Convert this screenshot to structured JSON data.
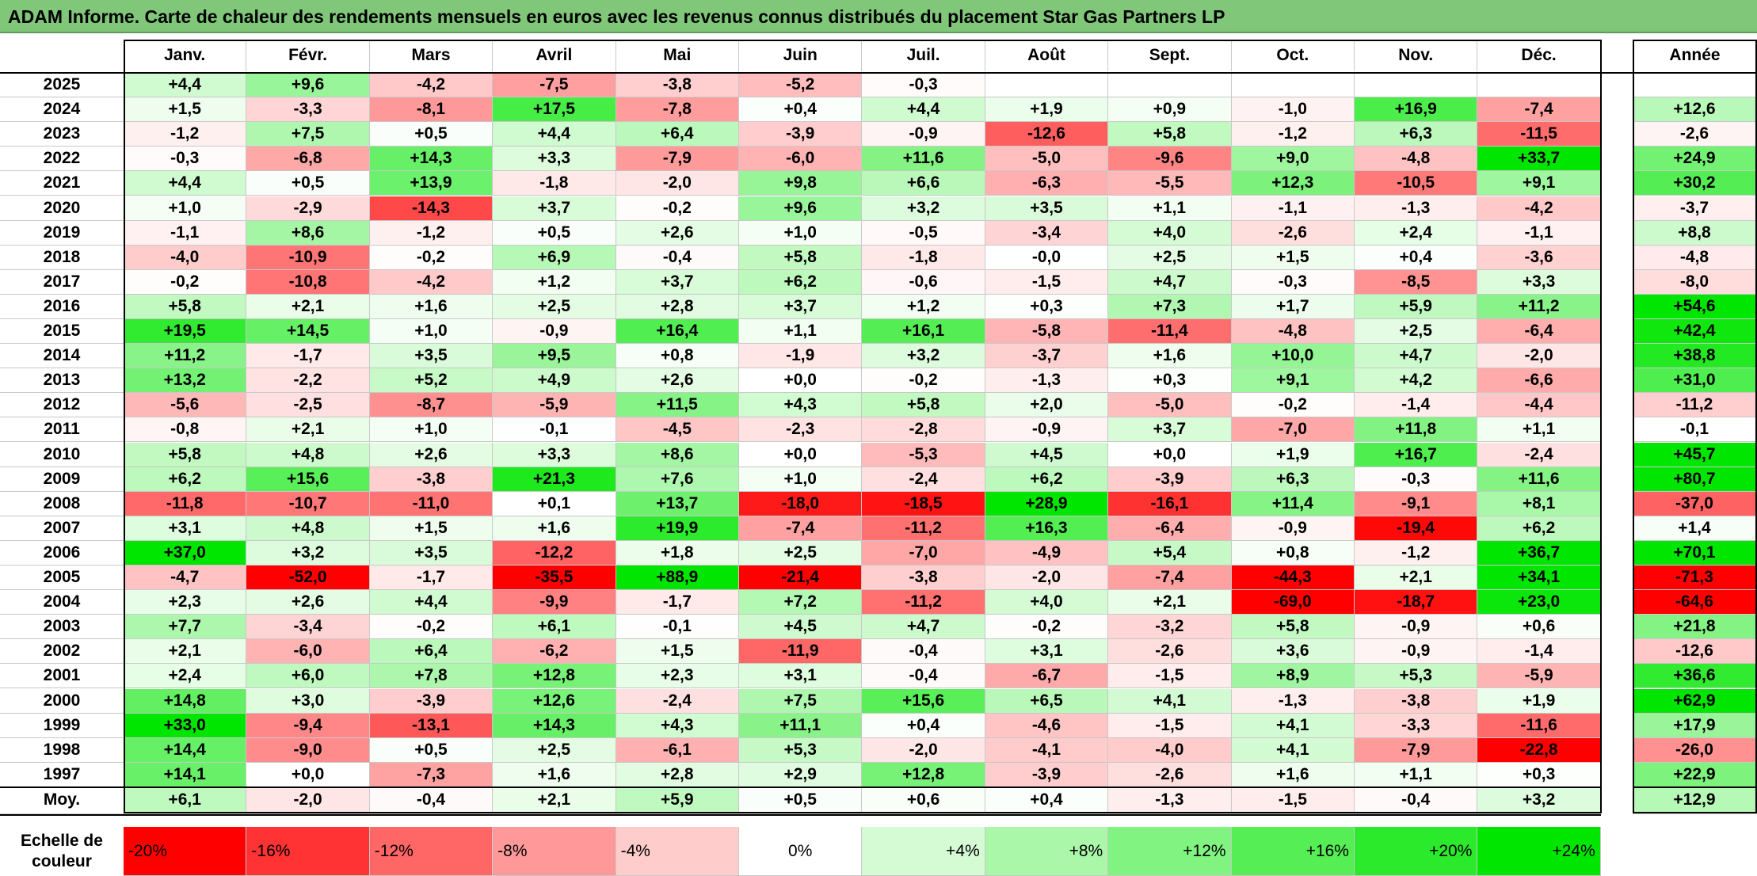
{
  "title": "ADAM Informe. Carte de chaleur des rendements mensuels en euros avec les revenus connus distribués du placement Star Gas Partners LP",
  "chart_data": {
    "type": "heatmap",
    "title": "ADAM Informe. Carte de chaleur des rendements mensuels en euros avec les revenus connus distribués du placement Star Gas Partners LP",
    "months": [
      "Janv.",
      "Févr.",
      "Mars",
      "Avril",
      "Mai",
      "Juin",
      "Juil.",
      "Août",
      "Sept.",
      "Oct.",
      "Nov.",
      "Déc."
    ],
    "annual_label": "Année",
    "average_label": "Moy.",
    "rows": [
      {
        "year": "2025",
        "values": [
          "+4,4",
          "+9,6",
          "-4,2",
          "-7,5",
          "-3,8",
          "-5,2",
          "-0,3",
          "",
          "",
          "",
          "",
          ""
        ],
        "annual": ""
      },
      {
        "year": "2024",
        "values": [
          "+1,5",
          "-3,3",
          "-8,1",
          "+17,5",
          "-7,8",
          "+0,4",
          "+4,4",
          "+1,9",
          "+0,9",
          "-1,0",
          "+16,9",
          "-7,4"
        ],
        "annual": "+12,6"
      },
      {
        "year": "2023",
        "values": [
          "-1,2",
          "+7,5",
          "+0,5",
          "+4,4",
          "+6,4",
          "-3,9",
          "-0,9",
          "-12,6",
          "+5,8",
          "-1,2",
          "+6,3",
          "-11,5"
        ],
        "annual": "-2,6"
      },
      {
        "year": "2022",
        "values": [
          "-0,3",
          "-6,8",
          "+14,3",
          "+3,3",
          "-7,9",
          "-6,0",
          "+11,6",
          "-5,0",
          "-9,6",
          "+9,0",
          "-4,8",
          "+33,7"
        ],
        "annual": "+24,9"
      },
      {
        "year": "2021",
        "values": [
          "+4,4",
          "+0,5",
          "+13,9",
          "-1,8",
          "-2,0",
          "+9,8",
          "+6,6",
          "-6,3",
          "-5,5",
          "+12,3",
          "-10,5",
          "+9,1"
        ],
        "annual": "+30,2"
      },
      {
        "year": "2020",
        "values": [
          "+1,0",
          "-2,9",
          "-14,3",
          "+3,7",
          "-0,2",
          "+9,6",
          "+3,2",
          "+3,5",
          "+1,1",
          "-1,1",
          "-1,3",
          "-4,2"
        ],
        "annual": "-3,7"
      },
      {
        "year": "2019",
        "values": [
          "-1,1",
          "+8,6",
          "-1,2",
          "+0,5",
          "+2,6",
          "+1,0",
          "-0,5",
          "-3,4",
          "+4,0",
          "-2,6",
          "+2,4",
          "-1,1"
        ],
        "annual": "+8,8"
      },
      {
        "year": "2018",
        "values": [
          "-4,0",
          "-10,9",
          "-0,2",
          "+6,9",
          "-0,4",
          "+5,8",
          "-1,8",
          "-0,0",
          "+2,5",
          "+1,5",
          "+0,4",
          "-3,6"
        ],
        "annual": "-4,8"
      },
      {
        "year": "2017",
        "values": [
          "-0,2",
          "-10,8",
          "-4,2",
          "+1,2",
          "+3,7",
          "+6,2",
          "-0,6",
          "-1,5",
          "+4,7",
          "-0,3",
          "-8,5",
          "+3,3"
        ],
        "annual": "-8,0"
      },
      {
        "year": "2016",
        "values": [
          "+5,8",
          "+2,1",
          "+1,6",
          "+2,5",
          "+2,8",
          "+3,7",
          "+1,2",
          "+0,3",
          "+7,3",
          "+1,7",
          "+5,9",
          "+11,2"
        ],
        "annual": "+54,6"
      },
      {
        "year": "2015",
        "values": [
          "+19,5",
          "+14,5",
          "+1,0",
          "-0,9",
          "+16,4",
          "+1,1",
          "+16,1",
          "-5,8",
          "-11,4",
          "-4,8",
          "+2,5",
          "-6,4"
        ],
        "annual": "+42,4"
      },
      {
        "year": "2014",
        "values": [
          "+11,2",
          "-1,7",
          "+3,5",
          "+9,5",
          "+0,8",
          "-1,9",
          "+3,2",
          "-3,7",
          "+1,6",
          "+10,0",
          "+4,7",
          "-2,0"
        ],
        "annual": "+38,8"
      },
      {
        "year": "2013",
        "values": [
          "+13,2",
          "-2,2",
          "+5,2",
          "+4,9",
          "+2,6",
          "+0,0",
          "-0,2",
          "-1,3",
          "+0,3",
          "+9,1",
          "+4,2",
          "-6,6"
        ],
        "annual": "+31,0"
      },
      {
        "year": "2012",
        "values": [
          "-5,6",
          "-2,5",
          "-8,7",
          "-5,9",
          "+11,5",
          "+4,3",
          "+5,8",
          "+2,0",
          "-5,0",
          "-0,2",
          "-1,4",
          "-4,4"
        ],
        "annual": "-11,2"
      },
      {
        "year": "2011",
        "values": [
          "-0,8",
          "+2,1",
          "+1,0",
          "-0,1",
          "-4,5",
          "-2,3",
          "-2,8",
          "-0,9",
          "+3,7",
          "-7,0",
          "+11,8",
          "+1,1"
        ],
        "annual": "-0,1"
      },
      {
        "year": "2010",
        "values": [
          "+5,8",
          "+4,8",
          "+2,6",
          "+3,3",
          "+8,6",
          "+0,0",
          "-5,3",
          "+4,5",
          "+0,0",
          "+1,9",
          "+16,7",
          "-2,4"
        ],
        "annual": "+45,7"
      },
      {
        "year": "2009",
        "values": [
          "+6,2",
          "+15,6",
          "-3,8",
          "+21,3",
          "+7,6",
          "+1,0",
          "-2,4",
          "+6,2",
          "-3,9",
          "+6,3",
          "-0,3",
          "+11,6"
        ],
        "annual": "+80,7"
      },
      {
        "year": "2008",
        "values": [
          "-11,8",
          "-10,7",
          "-11,0",
          "+0,1",
          "+13,7",
          "-18,0",
          "-18,5",
          "+28,9",
          "-16,1",
          "+11,4",
          "-9,1",
          "+8,1"
        ],
        "annual": "-37,0"
      },
      {
        "year": "2007",
        "values": [
          "+3,1",
          "+4,8",
          "+1,5",
          "+1,6",
          "+19,9",
          "-7,4",
          "-11,2",
          "+16,3",
          "-6,4",
          "-0,9",
          "-19,4",
          "+6,2"
        ],
        "annual": "+1,4"
      },
      {
        "year": "2006",
        "values": [
          "+37,0",
          "+3,2",
          "+3,5",
          "-12,2",
          "+1,8",
          "+2,5",
          "-7,0",
          "-4,9",
          "+5,4",
          "+0,8",
          "-1,2",
          "+36,7"
        ],
        "annual": "+70,1"
      },
      {
        "year": "2005",
        "values": [
          "-4,7",
          "-52,0",
          "-1,7",
          "-35,5",
          "+88,9",
          "-21,4",
          "-3,8",
          "-2,0",
          "-7,4",
          "-44,3",
          "+2,1",
          "+34,1"
        ],
        "annual": "-71,3"
      },
      {
        "year": "2004",
        "values": [
          "+2,3",
          "+2,6",
          "+4,4",
          "-9,9",
          "-1,7",
          "+7,2",
          "-11,2",
          "+4,0",
          "+2,1",
          "-69,0",
          "-18,7",
          "+23,0"
        ],
        "annual": "-64,6"
      },
      {
        "year": "2003",
        "values": [
          "+7,7",
          "-3,4",
          "-0,2",
          "+6,1",
          "-0,1",
          "+4,5",
          "+4,7",
          "-0,2",
          "-3,2",
          "+5,8",
          "-0,9",
          "+0,6"
        ],
        "annual": "+21,8"
      },
      {
        "year": "2002",
        "values": [
          "+2,1",
          "-6,0",
          "+6,4",
          "-6,2",
          "+1,5",
          "-11,9",
          "-0,4",
          "+3,1",
          "-2,6",
          "+3,6",
          "-0,9",
          "-1,4"
        ],
        "annual": "-12,6"
      },
      {
        "year": "2001",
        "values": [
          "+2,4",
          "+6,0",
          "+7,8",
          "+12,8",
          "+2,3",
          "+3,1",
          "-0,4",
          "-6,7",
          "-1,5",
          "+8,9",
          "+5,3",
          "-5,9"
        ],
        "annual": "+36,6"
      },
      {
        "year": "2000",
        "values": [
          "+14,8",
          "+3,0",
          "-3,9",
          "+12,6",
          "-2,4",
          "+7,5",
          "+15,6",
          "+6,5",
          "+4,1",
          "-1,3",
          "-3,8",
          "+1,9"
        ],
        "annual": "+62,9"
      },
      {
        "year": "1999",
        "values": [
          "+33,0",
          "-9,4",
          "-13,1",
          "+14,3",
          "+4,3",
          "+11,1",
          "+0,4",
          "-4,6",
          "-1,5",
          "+4,1",
          "-3,3",
          "-11,6"
        ],
        "annual": "+17,9"
      },
      {
        "year": "1998",
        "values": [
          "+14,4",
          "-9,0",
          "+0,5",
          "+2,5",
          "-6,1",
          "+5,3",
          "-2,0",
          "-4,1",
          "-4,0",
          "+4,1",
          "-7,9",
          "-22,8"
        ],
        "annual": "-26,0"
      },
      {
        "year": "1997",
        "values": [
          "+14,1",
          "+0,0",
          "-7,3",
          "+1,6",
          "+2,8",
          "+2,9",
          "+12,8",
          "-3,9",
          "-2,6",
          "+1,6",
          "+1,1",
          "+0,3"
        ],
        "annual": "+22,9"
      }
    ],
    "average": {
      "values": [
        "+6,1",
        "-2,0",
        "-0,4",
        "+2,1",
        "+5,9",
        "+0,5",
        "+0,6",
        "+0,4",
        "-1,3",
        "-1,5",
        "-0,4",
        "+3,2"
      ],
      "annual": "+12,9"
    },
    "scale": {
      "title": "Echelle de couleur",
      "labels": [
        "-20%",
        "-16%",
        "-12%",
        "-8%",
        "-4%",
        "0%",
        "+4%",
        "+8%",
        "+12%",
        "+16%",
        "+20%",
        "+24%"
      ],
      "stops": [
        -20,
        -16,
        -12,
        -8,
        -4,
        0,
        4,
        8,
        12,
        16,
        20,
        24
      ]
    },
    "colors": {
      "negative_max": "#ff0000",
      "positive_max": "#00e600",
      "neutral": "#ffffff",
      "title_bg": "#80c77a"
    }
  }
}
